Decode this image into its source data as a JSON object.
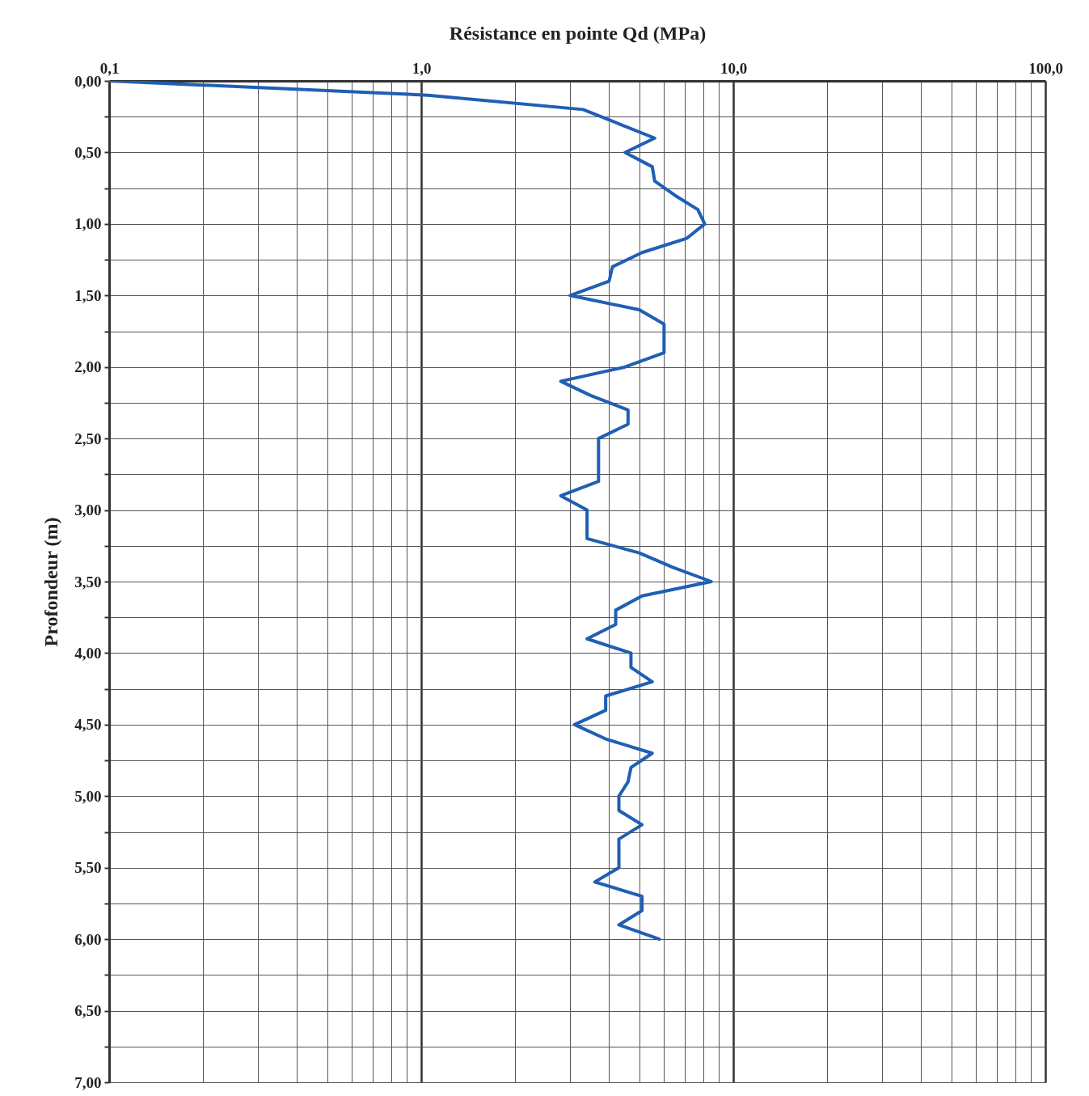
{
  "chart_data": {
    "type": "line",
    "xlabel": "Résistance en pointe Qd (MPa)",
    "ylabel": "Profondeur (m)",
    "log": "x",
    "grid": true,
    "marker": "none",
    "line_style": "solid",
    "xlim": [
      0.1,
      100
    ],
    "ylim": [
      7,
      0
    ],
    "xticks": [
      {
        "value": 0.1,
        "label": "0,1"
      },
      {
        "value": 0.2,
        "label": null
      },
      {
        "value": 0.3,
        "label": null
      },
      {
        "value": 0.4,
        "label": null
      },
      {
        "value": 0.5,
        "label": null
      },
      {
        "value": 0.6,
        "label": null
      },
      {
        "value": 0.7,
        "label": null
      },
      {
        "value": 0.8,
        "label": null
      },
      {
        "value": 0.9,
        "label": null
      },
      {
        "value": 1,
        "label": "1,0"
      },
      {
        "value": 2,
        "label": null
      },
      {
        "value": 3,
        "label": null
      },
      {
        "value": 4,
        "label": null
      },
      {
        "value": 5,
        "label": null
      },
      {
        "value": 6,
        "label": null
      },
      {
        "value": 7,
        "label": null
      },
      {
        "value": 8,
        "label": null
      },
      {
        "value": 9,
        "label": null
      },
      {
        "value": 10,
        "label": "10,0"
      },
      {
        "value": 20,
        "label": null
      },
      {
        "value": 30,
        "label": null
      },
      {
        "value": 40,
        "label": null
      },
      {
        "value": 50,
        "label": null
      },
      {
        "value": 60,
        "label": null
      },
      {
        "value": 70,
        "label": null
      },
      {
        "value": 80,
        "label": null
      },
      {
        "value": 90,
        "label": null
      },
      {
        "value": 100,
        "label": "100,0"
      }
    ],
    "yticks": [
      {
        "value": 0,
        "label": "0,00"
      },
      {
        "value": 0.25,
        "label": null
      },
      {
        "value": 0.5,
        "label": "0,50"
      },
      {
        "value": 0.75,
        "label": null
      },
      {
        "value": 1,
        "label": "1,00"
      },
      {
        "value": 1.25,
        "label": null
      },
      {
        "value": 1.5,
        "label": "1,50"
      },
      {
        "value": 1.75,
        "label": null
      },
      {
        "value": 2,
        "label": "2,00"
      },
      {
        "value": 2.25,
        "label": null
      },
      {
        "value": 2.5,
        "label": "2,50"
      },
      {
        "value": 2.75,
        "label": null
      },
      {
        "value": 3,
        "label": "3,00"
      },
      {
        "value": 3.25,
        "label": null
      },
      {
        "value": 3.5,
        "label": "3,50"
      },
      {
        "value": 3.75,
        "label": null
      },
      {
        "value": 4,
        "label": "4,00"
      },
      {
        "value": 4.25,
        "label": null
      },
      {
        "value": 4.5,
        "label": "4,50"
      },
      {
        "value": 4.75,
        "label": null
      },
      {
        "value": 5,
        "label": "5,00"
      },
      {
        "value": 5.25,
        "label": null
      },
      {
        "value": 5.5,
        "label": "5,50"
      },
      {
        "value": 5.75,
        "label": null
      },
      {
        "value": 6,
        "label": "6,00"
      },
      {
        "value": 6.25,
        "label": null
      },
      {
        "value": 6.5,
        "label": "6,50"
      },
      {
        "value": 6.75,
        "label": null
      },
      {
        "value": 7,
        "label": "7,00"
      }
    ],
    "series": [
      {
        "color": "#1f5fb4",
        "x": [
          0.1,
          1.05,
          3.3,
          4.3,
          5.6,
          4.5,
          5.5,
          5.6,
          6.5,
          7.7,
          8.1,
          7.1,
          5.1,
          4.1,
          4.0,
          3.0,
          5.0,
          6.0,
          6.0,
          6.0,
          4.5,
          2.8,
          3.5,
          4.6,
          4.6,
          3.7,
          3.7,
          3.7,
          3.7,
          2.8,
          3.4,
          3.4,
          3.4,
          5.0,
          6.4,
          8.5,
          5.1,
          4.2,
          4.2,
          3.4,
          4.7,
          4.7,
          5.5,
          3.9,
          3.9,
          3.1,
          3.9,
          5.5,
          4.7,
          4.6,
          4.3,
          4.3,
          5.1,
          4.3,
          4.3,
          4.3,
          3.6,
          5.1,
          5.1,
          4.3,
          5.8
        ],
        "values": [
          0,
          0.1,
          0.2,
          0.3,
          0.4,
          0.5,
          0.6,
          0.7,
          0.8,
          0.9,
          1.0,
          1.1,
          1.2,
          1.3,
          1.4,
          1.5,
          1.6,
          1.7,
          1.8,
          1.9,
          2.0,
          2.1,
          2.2,
          2.3,
          2.4,
          2.5,
          2.6,
          2.7,
          2.8,
          2.9,
          3.0,
          3.1,
          3.2,
          3.3,
          3.4,
          3.5,
          3.6,
          3.7,
          3.8,
          3.9,
          4.0,
          4.1,
          4.2,
          4.3,
          4.4,
          4.5,
          4.6,
          4.7,
          4.8,
          4.9,
          5.0,
          5.1,
          5.2,
          5.3,
          5.4,
          5.5,
          5.6,
          5.7,
          5.8,
          5.9,
          6.0
        ]
      }
    ]
  }
}
